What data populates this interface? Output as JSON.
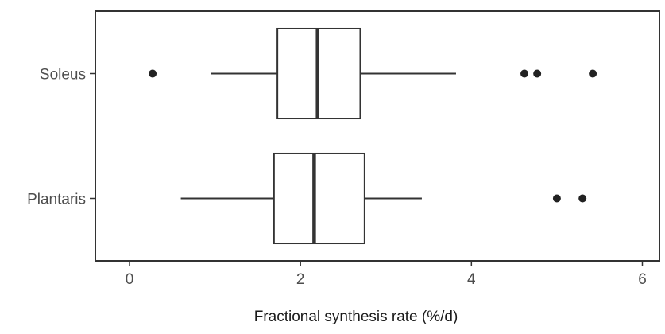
{
  "chart_data": {
    "type": "boxplot",
    "orientation": "horizontal",
    "title": "",
    "xlabel": "Fractional synthesis rate (%/d)",
    "ylabel": "",
    "xlim": [
      -0.4,
      6.2
    ],
    "xticks": [
      0,
      2,
      4,
      6
    ],
    "grid": false,
    "categories": [
      "Soleus",
      "Plantaris"
    ],
    "boxes": [
      {
        "category": "Soleus",
        "whisker_low": 0.95,
        "q1": 1.73,
        "median": 2.2,
        "q3": 2.7,
        "whisker_high": 3.82,
        "outliers": [
          0.27,
          4.62,
          4.77,
          5.42
        ]
      },
      {
        "category": "Plantaris",
        "whisker_low": 0.6,
        "q1": 1.69,
        "median": 2.16,
        "q3": 2.75,
        "whisker_high": 3.42,
        "outliers": [
          5.0,
          5.3
        ]
      }
    ],
    "colors": {
      "stroke": "#333333",
      "fill": "#ffffff",
      "outlier": "#222222",
      "text": "#4d4d4d"
    }
  }
}
